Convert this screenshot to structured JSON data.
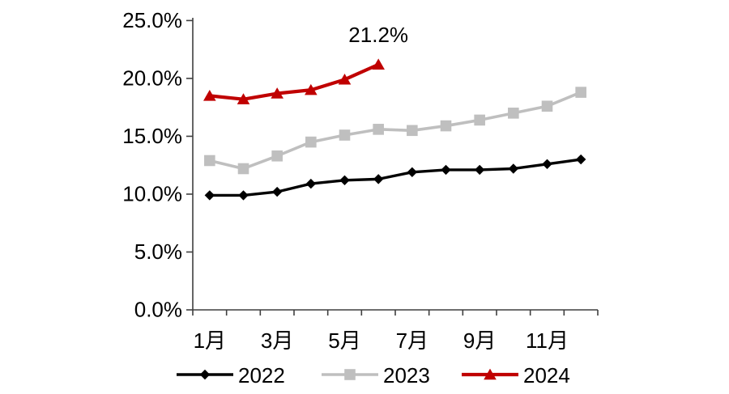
{
  "chart_data": {
    "type": "line",
    "title": "",
    "xlabel": "",
    "ylabel": "",
    "grid": false,
    "unit": "%",
    "x_axis": {
      "category_count": 12,
      "tick_months": [
        1,
        3,
        5,
        7,
        9,
        11
      ],
      "tick_labels": [
        "1月",
        "3月",
        "5月",
        "7月",
        "9月",
        "11月"
      ]
    },
    "y_axis": {
      "min": 0,
      "max": 25,
      "tick_values": [
        0,
        5,
        10,
        15,
        20,
        25
      ],
      "tick_labels": [
        "0.0%",
        "5.0%",
        "10.0%",
        "15.0%",
        "20.0%",
        "25.0%"
      ]
    },
    "series": [
      {
        "name": "2022",
        "color": "#000000",
        "marker": "diamond",
        "line_width": 3.4,
        "values": [
          9.9,
          9.9,
          10.2,
          10.9,
          11.2,
          11.3,
          11.9,
          12.1,
          12.1,
          12.2,
          12.6,
          13.0
        ]
      },
      {
        "name": "2023",
        "color": "#bfbfbf",
        "marker": "square",
        "line_width": 3.6,
        "values": [
          12.9,
          12.2,
          13.3,
          14.5,
          15.1,
          15.6,
          15.5,
          15.9,
          16.4,
          17.0,
          17.6,
          18.8
        ]
      },
      {
        "name": "2024",
        "color": "#c00000",
        "marker": "triangle",
        "line_width": 4.2,
        "values": [
          18.5,
          18.2,
          18.7,
          19.0,
          19.9,
          21.2
        ]
      }
    ],
    "annotation": {
      "text": "21.2%",
      "series": "2024",
      "month": 6,
      "value": 21.2
    },
    "legend": {
      "position": "bottom",
      "entries": [
        "2022",
        "2023",
        "2024"
      ]
    }
  }
}
